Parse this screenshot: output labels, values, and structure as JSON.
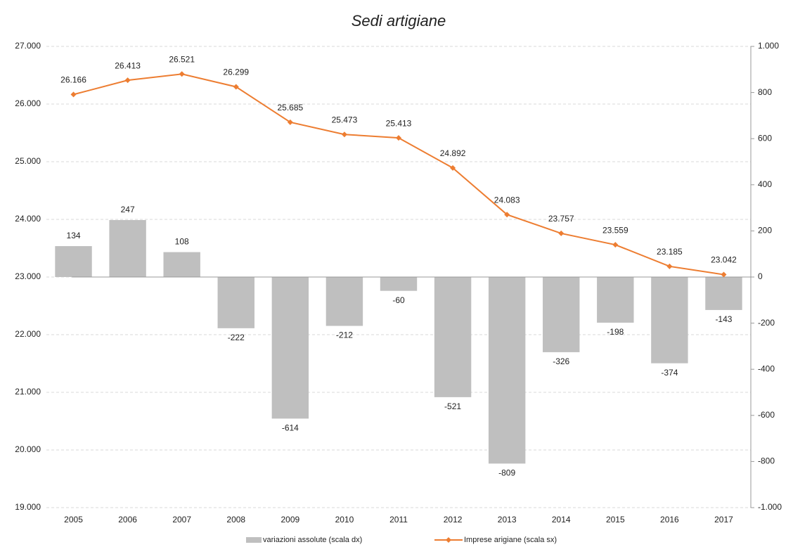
{
  "chart_data": {
    "type": "combo",
    "title": "Sedi artigiane",
    "categories": [
      "2005",
      "2006",
      "2007",
      "2008",
      "2009",
      "2010",
      "2011",
      "2012",
      "2013",
      "2014",
      "2015",
      "2016",
      "2017"
    ],
    "series": [
      {
        "name": "variazioni assolute (scala dx)",
        "type": "bar",
        "axis": "y2",
        "color": "#bfbfbf",
        "values": [
          134,
          247,
          108,
          -222,
          -614,
          -212,
          -60,
          -521,
          -809,
          -326,
          -198,
          -374,
          -143
        ]
      },
      {
        "name": "Imprese arigiane (scala sx)",
        "type": "line",
        "color": "#ed7d31",
        "values": [
          26166,
          26413,
          26521,
          26299,
          25685,
          25473,
          25413,
          24892,
          24083,
          23757,
          23559,
          23185,
          23042
        ],
        "value_labels": [
          "26.166",
          "26.413",
          "26.521",
          "26.299",
          "25.685",
          "25.473",
          "25.413",
          "24.892",
          "24.083",
          "23.757",
          "23.559",
          "23.185",
          "23.042"
        ]
      }
    ],
    "ylim": [
      19000,
      27000
    ],
    "yticks": [
      {
        "value": 19000,
        "label": "19.000"
      },
      {
        "value": 20000,
        "label": "20.000"
      },
      {
        "value": 21000,
        "label": "21.000"
      },
      {
        "value": 22000,
        "label": "22.000"
      },
      {
        "value": 23000,
        "label": "23.000"
      },
      {
        "value": 24000,
        "label": "24.000"
      },
      {
        "value": 25000,
        "label": "25.000"
      },
      {
        "value": 26000,
        "label": "26.000"
      },
      {
        "value": 27000,
        "label": "27.000"
      }
    ],
    "y2lim": [
      -1000,
      1000
    ],
    "y2ticks": [
      {
        "value": -1000,
        "label": "-1.000"
      },
      -800,
      -600,
      -400,
      -200,
      0,
      200,
      400,
      600,
      800,
      {
        "value": 1000,
        "label": "1.000"
      }
    ],
    "grid": true,
    "legend": "bottom"
  }
}
